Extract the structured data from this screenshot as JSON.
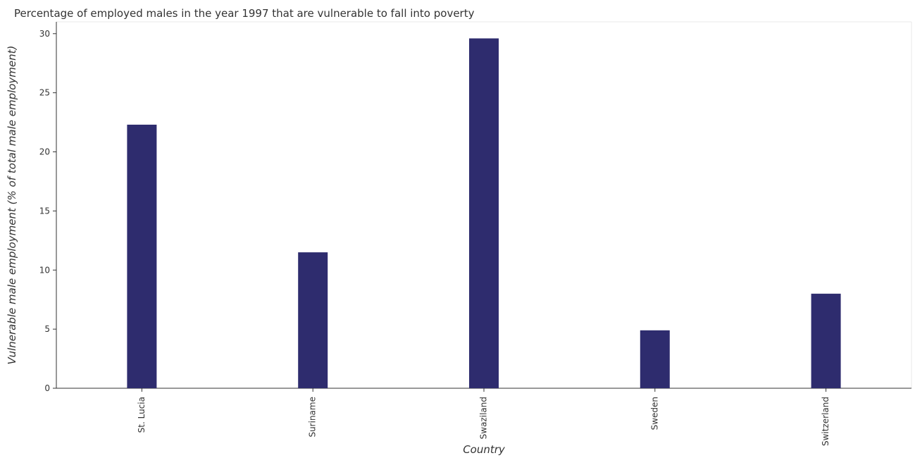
{
  "chart_data": {
    "type": "bar",
    "title": "Percentage of employed males in the year 1997 that are vulnerable to fall into poverty",
    "xlabel": "Country",
    "ylabel": "Vulnerable male employment (% of total male employment)",
    "categories": [
      "St. Lucia",
      "Suriname",
      "Swaziland",
      "Sweden",
      "Switzerland"
    ],
    "values": [
      22.3,
      11.5,
      29.6,
      4.9,
      8.0
    ],
    "ylim": [
      0,
      31
    ],
    "yticks": [
      0,
      5,
      10,
      15,
      20,
      25,
      30
    ],
    "grid": false,
    "bar_color": "#2e2c6e"
  }
}
